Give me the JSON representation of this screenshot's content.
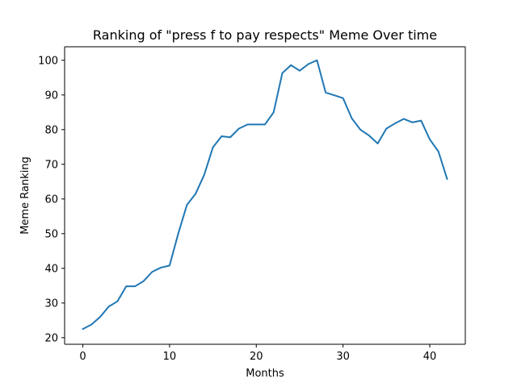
{
  "chart_data": {
    "type": "line",
    "title": "Ranking of \"press f to pay respects\" Meme Over time",
    "xlabel": "Months",
    "ylabel": "Meme Ranking",
    "xlim": [
      -2.1,
      44.1
    ],
    "ylim": [
      18.1,
      103.9
    ],
    "xticks": [
      0,
      10,
      20,
      30,
      40
    ],
    "yticks": [
      20,
      30,
      40,
      50,
      60,
      70,
      80,
      90,
      100
    ],
    "grid": false,
    "legend": "none",
    "series": [
      {
        "color": "#1f77b4",
        "x": [
          0,
          1,
          2,
          3,
          4,
          5,
          6,
          7,
          8,
          9,
          10,
          11,
          12,
          13,
          14,
          15,
          16,
          17,
          18,
          19,
          20,
          21,
          22,
          23,
          24,
          25,
          26,
          27,
          28,
          29,
          30,
          31,
          32,
          33,
          34,
          35,
          36,
          37,
          38,
          39,
          40,
          41,
          42
        ],
        "y": [
          22.5,
          23.8,
          26.0,
          29.0,
          30.5,
          34.8,
          34.8,
          36.3,
          39.0,
          40.2,
          40.8,
          50.0,
          58.3,
          61.5,
          67.0,
          74.9,
          78.1,
          77.8,
          80.3,
          81.5,
          81.5,
          81.5,
          85.0,
          96.3,
          98.6,
          97.0,
          98.9,
          100.0,
          90.7,
          89.9,
          89.1,
          83.3,
          80.0,
          78.3,
          76.0,
          80.3,
          81.8,
          83.1,
          82.1,
          82.6,
          77.2,
          73.7,
          65.8
        ]
      }
    ]
  }
}
